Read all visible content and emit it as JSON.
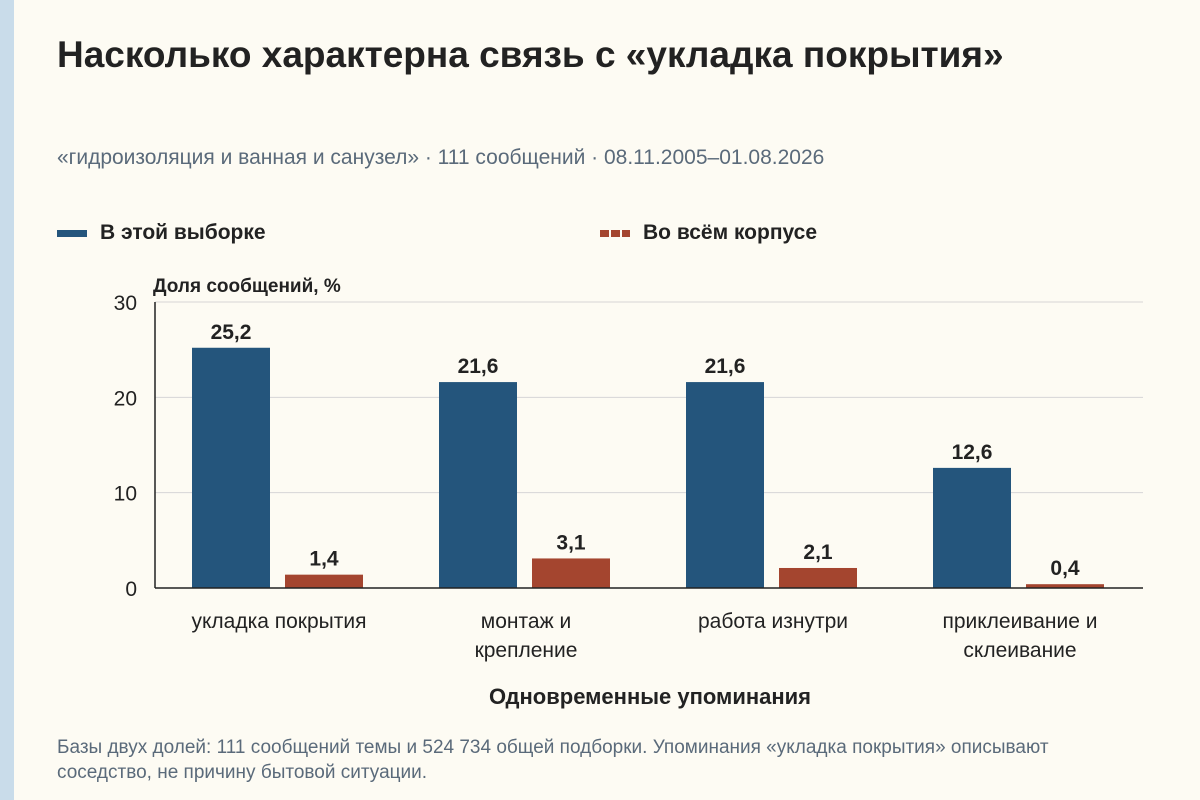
{
  "header": {
    "title": "Насколько характерна связь с «укладка покрытия»",
    "subtitle": "«гидроизоляция и ванная и санузел» · 111 сообщений · 08.11.2005–01.08.2026"
  },
  "legend": {
    "items": [
      {
        "label": "В этой выборке",
        "color": "#24557c"
      },
      {
        "label": "Во всём корпусе",
        "color": "#a4452f"
      }
    ]
  },
  "chart_data": {
    "type": "bar",
    "ylabel": "Доля сообщений, %",
    "xlabel": "Одновременные упоминания",
    "ylim": [
      0,
      30
    ],
    "yticks": [
      "0",
      "10",
      "20",
      "30"
    ],
    "grid": true,
    "legend_position": "top",
    "categories": [
      [
        "укладка покрытия"
      ],
      [
        "монтаж и",
        "крепление"
      ],
      [
        "работа изнутри"
      ],
      [
        "приклеивание и",
        "склеивание"
      ]
    ],
    "series": [
      {
        "name": "В этой выборке",
        "color": "#24557c",
        "values": [
          25.2,
          21.6,
          21.6,
          12.6
        ],
        "labels": [
          "25,2",
          "21,6",
          "21,6",
          "12,6"
        ]
      },
      {
        "name": "Во всём корпусе",
        "color": "#a4452f",
        "values": [
          1.4,
          3.1,
          2.1,
          0.4
        ],
        "labels": [
          "1,4",
          "3,1",
          "2,1",
          "0,4"
        ]
      }
    ]
  },
  "footnote": "Базы двух долей: 111 сообщений темы и 524 734 общей подборки. Упоминания «укладка покрытия» описывают соседство, не причину бытовой ситуации."
}
